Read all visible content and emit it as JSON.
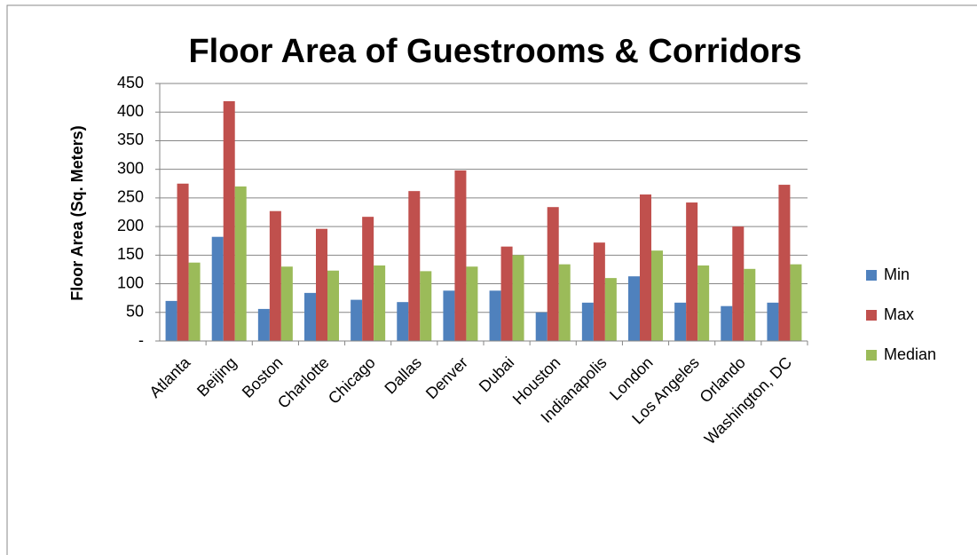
{
  "chart_data": {
    "type": "bar",
    "title": "Floor Area of Guestrooms & Corridors",
    "y_label": "Floor Area (Sq. Meters)",
    "categories": [
      "Atlanta",
      "Beijing",
      "Boston",
      "Charlotte",
      "Chicago",
      "Dallas",
      "Denver",
      "Dubai",
      "Houston",
      "Indianapolis",
      "London",
      "Los Angeles",
      "Orlando",
      "Washington, DC"
    ],
    "series": [
      {
        "name": "Min",
        "color": "#4f81bd",
        "values": [
          70,
          182,
          56,
          84,
          72,
          68,
          88,
          88,
          50,
          67,
          113,
          67,
          61,
          67
        ]
      },
      {
        "name": "Max",
        "color": "#c0504d",
        "values": [
          275,
          419,
          227,
          196,
          217,
          262,
          298,
          165,
          234,
          172,
          256,
          242,
          200,
          273
        ]
      },
      {
        "name": "Median",
        "color": "#9bbb59",
        "values": [
          137,
          270,
          130,
          123,
          132,
          122,
          130,
          150,
          134,
          110,
          158,
          132,
          126,
          134
        ]
      }
    ],
    "ylim": [
      0,
      450
    ],
    "yticks": [
      {
        "value": 0,
        "label": "-"
      },
      50,
      100,
      150,
      200,
      250,
      300,
      350,
      400,
      450
    ],
    "grid": true,
    "legend": "right"
  }
}
